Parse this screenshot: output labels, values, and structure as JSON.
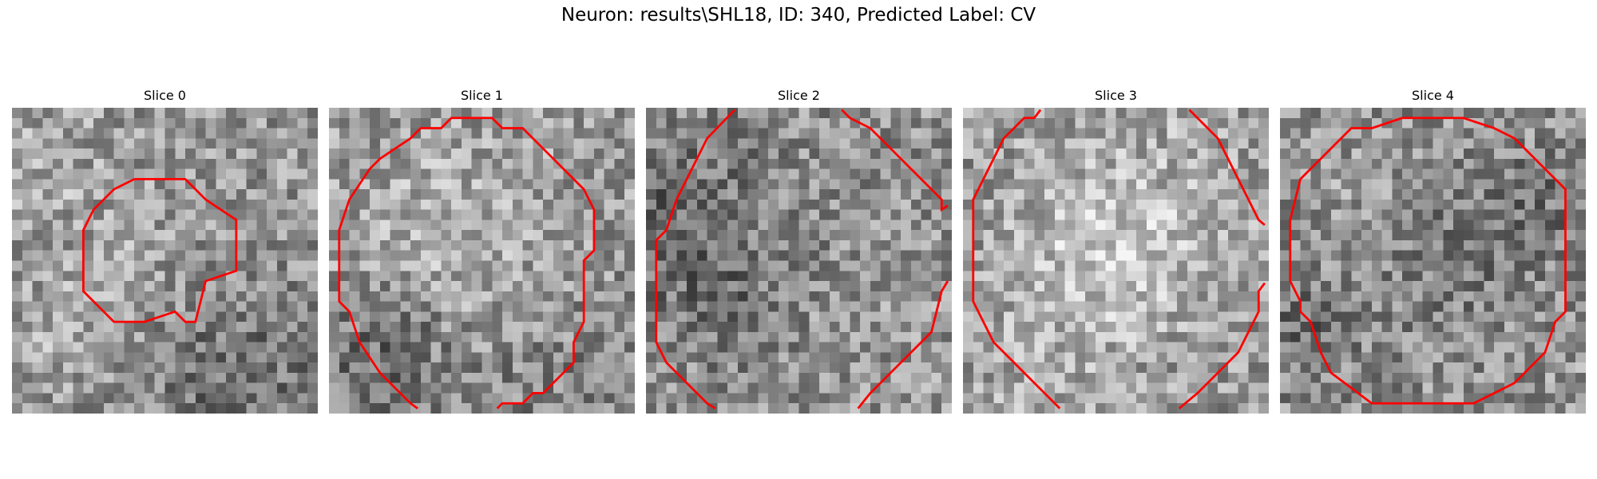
{
  "figure": {
    "title": "Neuron: results\\SHL18, ID: 340, Predicted Label: CV"
  },
  "panels": [
    {
      "title": "Slice 0",
      "seed": 11,
      "contour_color": "#ff0000"
    },
    {
      "title": "Slice 1",
      "seed": 23,
      "contour_color": "#ff0000"
    },
    {
      "title": "Slice 2",
      "seed": 37,
      "contour_color": "#ff0000"
    },
    {
      "title": "Slice 3",
      "seed": 51,
      "contour_color": "#ff0000"
    },
    {
      "title": "Slice 4",
      "seed": 67,
      "contour_color": "#ff0000"
    }
  ]
}
